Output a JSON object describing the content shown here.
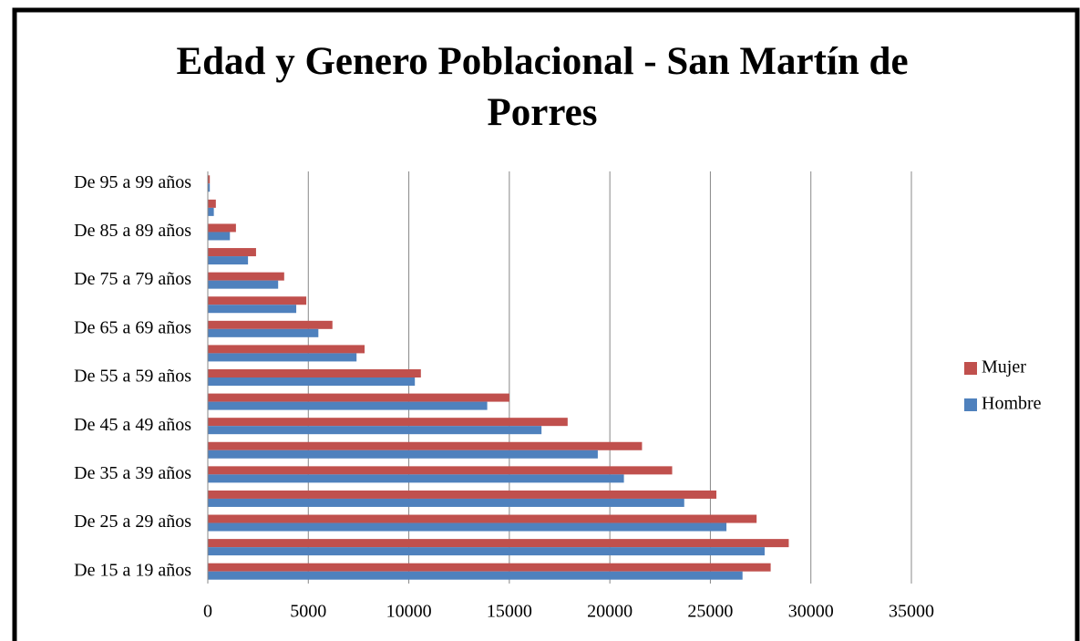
{
  "chart_data": {
    "type": "hbar",
    "title": "Edad y Genero Poblacional - San Martín de Porres",
    "categories": [
      "De 15 a 19 años",
      null,
      "De 25 a 29 años",
      null,
      "De 35 a 39 años",
      null,
      "De 45 a 49 años",
      null,
      "De 55 a 59 años",
      null,
      "De 65 a 69 años",
      null,
      "De 75 a 79 años",
      null,
      "De 85 a 89 años",
      null,
      "De 95 a 99 años"
    ],
    "series": [
      {
        "name": "Mujer",
        "color": "#c0504d",
        "values": [
          28000,
          28900,
          27300,
          25300,
          23100,
          21600,
          17900,
          15000,
          10600,
          7800,
          6200,
          4900,
          3800,
          2400,
          1400,
          400,
          100
        ]
      },
      {
        "name": "Hombre",
        "color": "#4f81bd",
        "values": [
          26600,
          27700,
          25800,
          23700,
          20700,
          19400,
          16600,
          13900,
          10300,
          7400,
          5500,
          4400,
          3500,
          2000,
          1100,
          300,
          100
        ]
      }
    ],
    "xlim": [
      0,
      35000
    ],
    "xticks": [
      0,
      5000,
      10000,
      15000,
      20000,
      25000,
      30000,
      35000
    ],
    "grid": true,
    "legend": "right"
  }
}
